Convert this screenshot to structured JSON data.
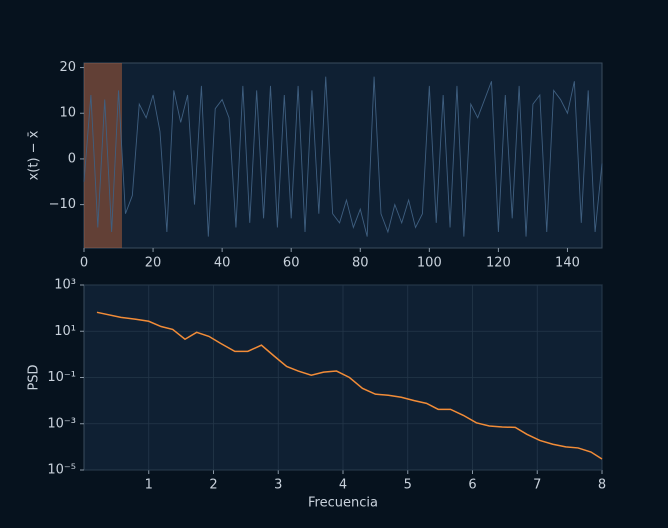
{
  "chart_data": [
    {
      "type": "line",
      "ylabel": "x(t) − x̄",
      "xlim": [
        0,
        150
      ],
      "xticks": [
        0,
        20,
        40,
        60,
        80,
        100,
        120,
        140
      ],
      "ylim": [
        -19.5,
        21
      ],
      "yticks": [
        {
          "value": -10,
          "label": "−10"
        },
        0,
        10,
        20
      ],
      "grid": false,
      "span": {
        "x": [
          0,
          11
        ],
        "color": "#c8683a"
      },
      "series": [
        {
          "color": "#3f5f80",
          "x": [
            0,
            2,
            4,
            6,
            8,
            10,
            12,
            14,
            16,
            18,
            20,
            22,
            24,
            26,
            28,
            30,
            32,
            34,
            36,
            38,
            40,
            42,
            44,
            46,
            48,
            50,
            52,
            54,
            56,
            58,
            60,
            62,
            64,
            66,
            68,
            70,
            72,
            74,
            76,
            78,
            80,
            82,
            84,
            86,
            88,
            90,
            92,
            94,
            96,
            98,
            100,
            102,
            104,
            106,
            108,
            110,
            112,
            114,
            116,
            118,
            120,
            122,
            124,
            126,
            128,
            130,
            132,
            134,
            136,
            138,
            140,
            142,
            144,
            146,
            148,
            150
          ],
          "values": [
            -5,
            14,
            -15,
            13,
            -16,
            15,
            -12,
            -8,
            12,
            9,
            14,
            6,
            -16,
            15,
            8,
            14,
            -10,
            16,
            -17,
            11,
            13,
            9,
            -15,
            16,
            -14,
            15,
            -13,
            16,
            -15,
            14,
            -13,
            16,
            -16,
            15,
            -12,
            18,
            -12,
            -14,
            -9,
            -15,
            -11,
            -17,
            18,
            -12,
            -16,
            -10,
            -14,
            -9,
            -15,
            -12,
            16,
            -14,
            14,
            -15,
            16,
            -17,
            12,
            9,
            13,
            17,
            -16,
            14,
            -13,
            16,
            -17,
            12,
            14,
            -16,
            15,
            13,
            10,
            17,
            -14,
            15,
            -16,
            -1
          ]
        }
      ]
    },
    {
      "type": "line",
      "xlabel": "Frecuencia",
      "ylabel": "PSD",
      "log_y": true,
      "xlim": [
        0,
        8
      ],
      "xticks": [
        1,
        2,
        3,
        4,
        5,
        6,
        7,
        8
      ],
      "ylim": [
        1e-05,
        1000
      ],
      "yticks": [
        {
          "value": 1e-05,
          "label": "10⁻⁵"
        },
        {
          "value": 0.001,
          "label": "10⁻³"
        },
        {
          "value": 0.1,
          "label": "10⁻¹"
        },
        {
          "value": 10,
          "label": "10¹"
        },
        {
          "value": 1000,
          "label": "10³"
        }
      ],
      "grid": true,
      "series": [
        {
          "color": "#f28c38",
          "x": [
            0.2,
            0.57,
            0.8,
            1,
            1.19,
            1.37,
            1.56,
            1.74,
            1.93,
            2.11,
            2.33,
            2.53,
            2.74,
            2.94,
            3.13,
            3.31,
            3.51,
            3.7,
            3.9,
            4.1,
            4.3,
            4.5,
            4.7,
            4.9,
            5.1,
            5.29,
            5.47,
            5.66,
            5.86,
            6.06,
            6.26,
            6.46,
            6.66,
            6.84,
            7.04,
            7.24,
            7.44,
            7.63,
            7.83,
            8
          ],
          "values": [
            66,
            40,
            33,
            27,
            16,
            12,
            4.5,
            9,
            6,
            3,
            1.35,
            1.35,
            2.5,
            0.83,
            0.3,
            0.19,
            0.125,
            0.17,
            0.19,
            0.1,
            0.034,
            0.019,
            0.017,
            0.014,
            0.01,
            0.0076,
            0.0042,
            0.0042,
            0.0023,
            0.0011,
            0.0008,
            0.00072,
            0.0007,
            0.00035,
            0.00019,
            0.00013,
            0.0001,
            9e-05,
            6e-05,
            3e-05
          ]
        }
      ]
    }
  ]
}
